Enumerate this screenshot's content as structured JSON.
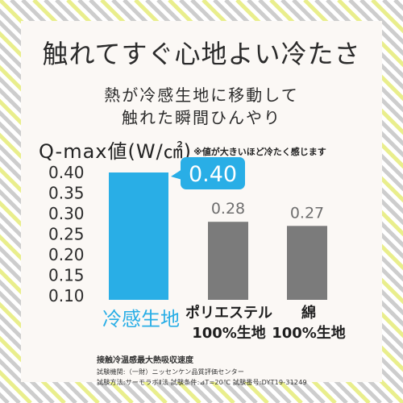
{
  "title": "触れてすぐ心地よい冷たさ",
  "subtitle_lines": [
    "熱が冷感生地に移動して",
    "触れた瞬間ひんやり"
  ],
  "metric_label": "Q-max値(W/㎠)",
  "metric_note": "※値が大きいほど冷たく感じます",
  "colors": {
    "accent": "#29aee6",
    "bar_gray": "#7b7b7b",
    "panel": "#fbf8f5",
    "stripe_yellow": "#e9ee8c",
    "stripe_gray": "#cdcdcd"
  },
  "chart_data": {
    "type": "bar",
    "categories": [
      [
        "冷感生地"
      ],
      [
        "ポリエステル",
        "100%生地"
      ],
      [
        "綿",
        "100%生地"
      ]
    ],
    "values": [
      0.4,
      0.28,
      0.27
    ],
    "value_labels": [
      "0.40",
      "0.28",
      "0.27"
    ],
    "highlight_index": 0,
    "y_ticks": [
      "0.40",
      "0.35",
      "0.30",
      "0.25",
      "0.20",
      "0.15",
      "0.10"
    ],
    "ylim": [
      0.1,
      0.4
    ],
    "grid": false
  },
  "footer": {
    "heading": "接触冷温感最大熱吸収速度",
    "line1": "試験機関:（一財）ニッセンケン品質評価センター",
    "line2": "試験方法:サーモラボⅡ法 試験条件:⊿T=20℃ 試験番号:DYT19-31249"
  }
}
